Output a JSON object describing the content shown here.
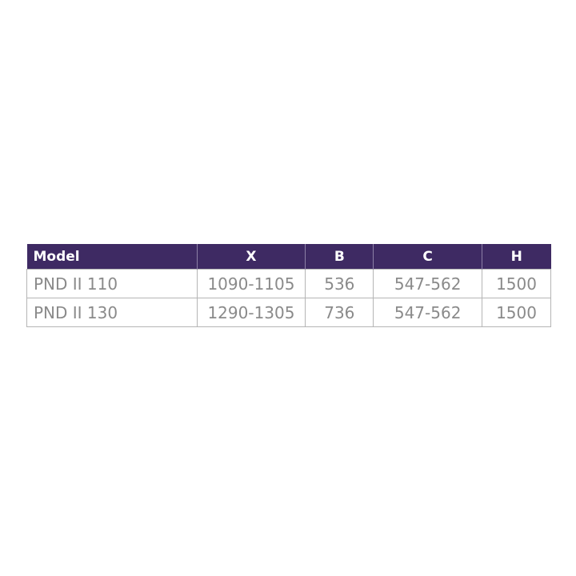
{
  "table": {
    "headers": [
      "Model",
      "X",
      "B",
      "C",
      "H"
    ],
    "rows": [
      [
        "PND II 110",
        "1090-1105",
        "536",
        "547-562",
        "1500"
      ],
      [
        "PND II 130",
        "1290-1305",
        "736",
        "547-562",
        "1500"
      ]
    ]
  },
  "colors": {
    "header_bg": "#3e2a63",
    "text": "#8a8a8a"
  }
}
